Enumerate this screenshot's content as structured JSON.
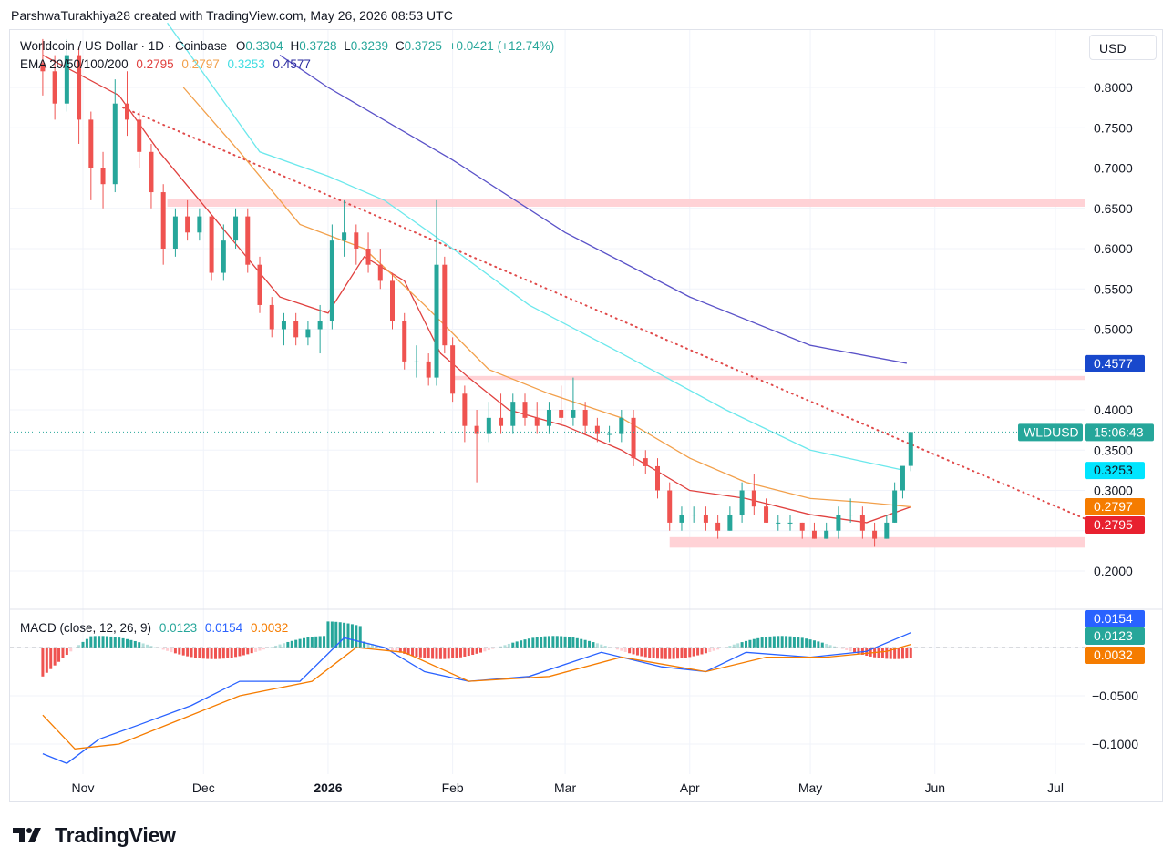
{
  "header": {
    "text": "ParshwaTurakhiya28 created with TradingView.com, May 26, 2026 08:53 UTC"
  },
  "legend": {
    "symbol": "Worldcoin / US Dollar · 1D · Coinbase",
    "open_label": "O",
    "open": "0.3304",
    "high_label": "H",
    "high": "0.3728",
    "low_label": "L",
    "low": "0.3239",
    "close_label": "C",
    "close": "0.3725",
    "change": "+0.0421 (+12.74%)",
    "ema_label": "EMA 20/50/100/200",
    "ema20": "0.2795",
    "ema50": "0.2797",
    "ema100": "0.3253",
    "ema200": "0.4577",
    "macd_label": "MACD (close, 12, 26, 9)",
    "macd_hist": "0.0123",
    "macd_line": "0.0154",
    "macd_signal": "0.0032"
  },
  "currency_button": "USD",
  "footer": {
    "brand": "TradingView"
  },
  "colors": {
    "up": "#26a69a",
    "down": "#ef5350",
    "ema20": "#e0413f",
    "ema50": "#f2a04b",
    "ema100": "#6ce8ec",
    "ema200": "#5a52c8",
    "zone": "#ffcdd2",
    "macd_line": "#2962ff",
    "signal_line": "#f57c00",
    "trendline": "#e04a4a"
  },
  "chart_data": {
    "type": "candlestick",
    "symbol": "WLDUSD",
    "interval": "1D",
    "x_tick_labels": [
      "Nov",
      "Dec",
      "2026",
      "Feb",
      "Mar",
      "Apr",
      "May",
      "Jun",
      "Jul"
    ],
    "price_axis": {
      "ticks": [
        "0.8000",
        "0.7500",
        "0.7000",
        "0.6500",
        "0.6000",
        "0.5500",
        "0.5000",
        "0.4000",
        "0.3500",
        "0.3000",
        "0.2000"
      ]
    },
    "macd_axis": {
      "ticks": [
        "−0.0500",
        "−0.1000"
      ]
    },
    "price_labels": [
      {
        "text": "0.4577",
        "color": "#1848cc"
      },
      {
        "text": "0.3253",
        "color": "#00e5ff"
      },
      {
        "text": "0.2797",
        "color": "#f57c00"
      },
      {
        "text": "0.2795",
        "color": "#e8212f"
      }
    ],
    "last_price": {
      "symbol": "WLDUSD",
      "countdown": "15:06:43",
      "value": 0.3725
    },
    "macd_labels": [
      {
        "text": "0.0154",
        "color": "#2962ff"
      },
      {
        "text": "0.0123",
        "color": "#26a69a"
      },
      {
        "text": "0.0032",
        "color": "#f57c00"
      }
    ],
    "zones": [
      {
        "from_date": "2025-11-22",
        "to_date": "2026-07-01",
        "low": 0.652,
        "high": 0.662
      },
      {
        "from_date": "2026-02-01",
        "to_date": "2026-07-01",
        "low": 0.437,
        "high": 0.442
      },
      {
        "from_date": "2026-03-27",
        "to_date": "2026-07-01",
        "low": 0.229,
        "high": 0.242
      }
    ],
    "trendline": {
      "from_date": "2025-11-11",
      "from_price": 0.775,
      "to_date": "2026-07-01",
      "to_price": 0.265
    },
    "ema_series": {
      "ema20": {
        "dates": [
          "2025-10-22",
          "2025-11-10",
          "2025-11-20",
          "2025-12-05",
          "2025-12-20",
          "2026-01-01",
          "2026-01-10",
          "2026-01-20",
          "2026-01-29",
          "2026-02-05",
          "2026-02-15",
          "2026-03-01",
          "2026-03-15",
          "2026-04-01",
          "2026-04-15",
          "2026-05-01",
          "2026-05-15",
          "2026-05-26"
        ],
        "values": [
          0.84,
          0.79,
          0.72,
          0.63,
          0.54,
          0.52,
          0.59,
          0.56,
          0.47,
          0.44,
          0.4,
          0.38,
          0.35,
          0.3,
          0.29,
          0.27,
          0.26,
          0.2795
        ]
      },
      "ema50": {
        "dates": [
          "2025-11-26",
          "2025-12-10",
          "2025-12-25",
          "2026-01-10",
          "2026-01-25",
          "2026-02-10",
          "2026-02-25",
          "2026-03-15",
          "2026-04-01",
          "2026-04-15",
          "2026-05-01",
          "2026-05-15",
          "2026-05-26"
        ],
        "values": [
          0.8,
          0.72,
          0.63,
          0.6,
          0.53,
          0.45,
          0.42,
          0.39,
          0.34,
          0.31,
          0.29,
          0.285,
          0.2797
        ]
      },
      "ema100": {
        "dates": [
          "2025-11-22",
          "2025-12-15",
          "2026-01-01",
          "2026-01-15",
          "2026-02-01",
          "2026-02-20",
          "2026-03-15",
          "2026-04-10",
          "2026-05-01",
          "2026-05-24"
        ],
        "values": [
          0.88,
          0.72,
          0.69,
          0.66,
          0.6,
          0.53,
          0.47,
          0.4,
          0.35,
          0.3253
        ]
      },
      "ema200": {
        "dates": [
          "2025-12-20",
          "2026-01-01",
          "2026-02-01",
          "2026-03-01",
          "2026-04-01",
          "2026-05-01",
          "2026-05-25"
        ],
        "values": [
          0.84,
          0.8,
          0.71,
          0.62,
          0.54,
          0.48,
          0.4577
        ]
      }
    },
    "candles": [
      [
        "2025-10-22",
        0.83,
        0.86,
        0.79,
        0.82
      ],
      [
        "2025-10-25",
        0.82,
        0.84,
        0.76,
        0.78
      ],
      [
        "2025-10-28",
        0.78,
        0.86,
        0.77,
        0.84
      ],
      [
        "2025-10-31",
        0.84,
        0.85,
        0.73,
        0.76
      ],
      [
        "2025-11-03",
        0.76,
        0.77,
        0.66,
        0.7
      ],
      [
        "2025-11-06",
        0.7,
        0.72,
        0.65,
        0.68
      ],
      [
        "2025-11-09",
        0.68,
        0.81,
        0.67,
        0.78
      ],
      [
        "2025-11-12",
        0.78,
        0.82,
        0.74,
        0.76
      ],
      [
        "2025-11-15",
        0.76,
        0.77,
        0.7,
        0.72
      ],
      [
        "2025-11-18",
        0.72,
        0.73,
        0.65,
        0.67
      ],
      [
        "2025-11-21",
        0.67,
        0.68,
        0.58,
        0.6
      ],
      [
        "2025-11-24",
        0.6,
        0.65,
        0.59,
        0.64
      ],
      [
        "2025-11-27",
        0.64,
        0.66,
        0.61,
        0.62
      ],
      [
        "2025-11-30",
        0.62,
        0.65,
        0.61,
        0.64
      ],
      [
        "2025-12-03",
        0.64,
        0.64,
        0.56,
        0.57
      ],
      [
        "2025-12-06",
        0.57,
        0.63,
        0.56,
        0.61
      ],
      [
        "2025-12-09",
        0.61,
        0.65,
        0.6,
        0.64
      ],
      [
        "2025-12-12",
        0.64,
        0.65,
        0.57,
        0.58
      ],
      [
        "2025-12-15",
        0.58,
        0.59,
        0.52,
        0.53
      ],
      [
        "2025-12-18",
        0.53,
        0.54,
        0.49,
        0.5
      ],
      [
        "2025-12-21",
        0.5,
        0.52,
        0.48,
        0.51
      ],
      [
        "2025-12-24",
        0.51,
        0.52,
        0.48,
        0.49
      ],
      [
        "2025-12-27",
        0.49,
        0.51,
        0.48,
        0.5
      ],
      [
        "2025-12-30",
        0.5,
        0.53,
        0.47,
        0.51
      ],
      [
        "2026-01-02",
        0.51,
        0.63,
        0.5,
        0.61
      ],
      [
        "2026-01-05",
        0.61,
        0.66,
        0.59,
        0.62
      ],
      [
        "2026-01-08",
        0.62,
        0.63,
        0.58,
        0.6
      ],
      [
        "2026-01-11",
        0.6,
        0.62,
        0.57,
        0.58
      ],
      [
        "2026-01-14",
        0.58,
        0.6,
        0.55,
        0.56
      ],
      [
        "2026-01-17",
        0.56,
        0.57,
        0.5,
        0.51
      ],
      [
        "2026-01-20",
        0.51,
        0.52,
        0.45,
        0.46
      ],
      [
        "2026-01-23",
        0.46,
        0.48,
        0.44,
        0.46
      ],
      [
        "2026-01-26",
        0.46,
        0.47,
        0.43,
        0.44
      ],
      [
        "2026-01-28",
        0.44,
        0.66,
        0.43,
        0.58
      ],
      [
        "2026-01-30",
        0.58,
        0.59,
        0.47,
        0.48
      ],
      [
        "2026-02-01",
        0.48,
        0.49,
        0.41,
        0.42
      ],
      [
        "2026-02-04",
        0.42,
        0.43,
        0.36,
        0.38
      ],
      [
        "2026-02-07",
        0.38,
        0.4,
        0.31,
        0.37
      ],
      [
        "2026-02-10",
        0.37,
        0.41,
        0.36,
        0.39
      ],
      [
        "2026-02-13",
        0.39,
        0.42,
        0.37,
        0.38
      ],
      [
        "2026-02-16",
        0.38,
        0.42,
        0.37,
        0.41
      ],
      [
        "2026-02-19",
        0.41,
        0.42,
        0.38,
        0.39
      ],
      [
        "2026-02-22",
        0.39,
        0.41,
        0.37,
        0.38
      ],
      [
        "2026-02-25",
        0.38,
        0.41,
        0.37,
        0.4
      ],
      [
        "2026-02-28",
        0.4,
        0.43,
        0.38,
        0.39
      ],
      [
        "2026-03-03",
        0.39,
        0.44,
        0.38,
        0.4
      ],
      [
        "2026-03-06",
        0.4,
        0.41,
        0.37,
        0.38
      ],
      [
        "2026-03-09",
        0.38,
        0.39,
        0.36,
        0.37
      ],
      [
        "2026-03-12",
        0.37,
        0.38,
        0.36,
        0.37
      ],
      [
        "2026-03-15",
        0.37,
        0.4,
        0.36,
        0.39
      ],
      [
        "2026-03-18",
        0.39,
        0.4,
        0.33,
        0.34
      ],
      [
        "2026-03-21",
        0.34,
        0.35,
        0.32,
        0.33
      ],
      [
        "2026-03-24",
        0.33,
        0.34,
        0.29,
        0.3
      ],
      [
        "2026-03-27",
        0.3,
        0.31,
        0.25,
        0.26
      ],
      [
        "2026-03-30",
        0.26,
        0.28,
        0.25,
        0.27
      ],
      [
        "2026-04-02",
        0.27,
        0.28,
        0.26,
        0.27
      ],
      [
        "2026-04-05",
        0.27,
        0.28,
        0.25,
        0.26
      ],
      [
        "2026-04-08",
        0.26,
        0.27,
        0.24,
        0.25
      ],
      [
        "2026-04-11",
        0.25,
        0.28,
        0.25,
        0.27
      ],
      [
        "2026-04-14",
        0.27,
        0.31,
        0.26,
        0.3
      ],
      [
        "2026-04-17",
        0.3,
        0.32,
        0.27,
        0.28
      ],
      [
        "2026-04-20",
        0.28,
        0.29,
        0.26,
        0.26
      ],
      [
        "2026-04-23",
        0.26,
        0.27,
        0.25,
        0.26
      ],
      [
        "2026-04-26",
        0.26,
        0.27,
        0.25,
        0.26
      ],
      [
        "2026-04-29",
        0.26,
        0.26,
        0.24,
        0.25
      ],
      [
        "2026-05-02",
        0.25,
        0.26,
        0.24,
        0.24
      ],
      [
        "2026-05-05",
        0.24,
        0.26,
        0.24,
        0.25
      ],
      [
        "2026-05-08",
        0.25,
        0.28,
        0.24,
        0.27
      ],
      [
        "2026-05-11",
        0.27,
        0.29,
        0.26,
        0.27
      ],
      [
        "2026-05-14",
        0.27,
        0.28,
        0.24,
        0.25
      ],
      [
        "2026-05-17",
        0.25,
        0.26,
        0.23,
        0.24
      ],
      [
        "2026-05-20",
        0.24,
        0.27,
        0.24,
        0.26
      ],
      [
        "2026-05-22",
        0.26,
        0.31,
        0.26,
        0.3
      ],
      [
        "2026-05-24",
        0.3,
        0.33,
        0.29,
        0.3304
      ],
      [
        "2026-05-26",
        0.3304,
        0.3728,
        0.3239,
        0.3725
      ]
    ],
    "macd": {
      "line": {
        "dates": [
          "2025-10-22",
          "2025-10-28",
          "2025-11-05",
          "2025-11-15",
          "2025-11-28",
          "2025-12-10",
          "2025-12-25",
          "2026-01-05",
          "2026-01-15",
          "2026-01-25",
          "2026-02-05",
          "2026-02-20",
          "2026-03-10",
          "2026-03-25",
          "2026-04-05",
          "2026-04-15",
          "2026-05-01",
          "2026-05-15",
          "2026-05-26"
        ],
        "values": [
          -0.11,
          -0.12,
          -0.095,
          -0.08,
          -0.06,
          -0.035,
          -0.035,
          0.01,
          0.0,
          -0.025,
          -0.035,
          -0.03,
          -0.005,
          -0.02,
          -0.025,
          -0.005,
          -0.01,
          -0.004,
          0.0154
        ]
      },
      "signal": {
        "dates": [
          "2025-10-22",
          "2025-10-30",
          "2025-11-10",
          "2025-11-25",
          "2025-12-10",
          "2025-12-28",
          "2026-01-08",
          "2026-01-20",
          "2026-02-05",
          "2026-02-25",
          "2026-03-15",
          "2026-04-05",
          "2026-04-20",
          "2026-05-05",
          "2026-05-20",
          "2026-05-26"
        ],
        "values": [
          -0.07,
          -0.105,
          -0.1,
          -0.075,
          -0.05,
          -0.035,
          0.0,
          -0.005,
          -0.035,
          -0.03,
          -0.01,
          -0.025,
          -0.01,
          -0.01,
          -0.004,
          0.0032
        ]
      }
    }
  }
}
